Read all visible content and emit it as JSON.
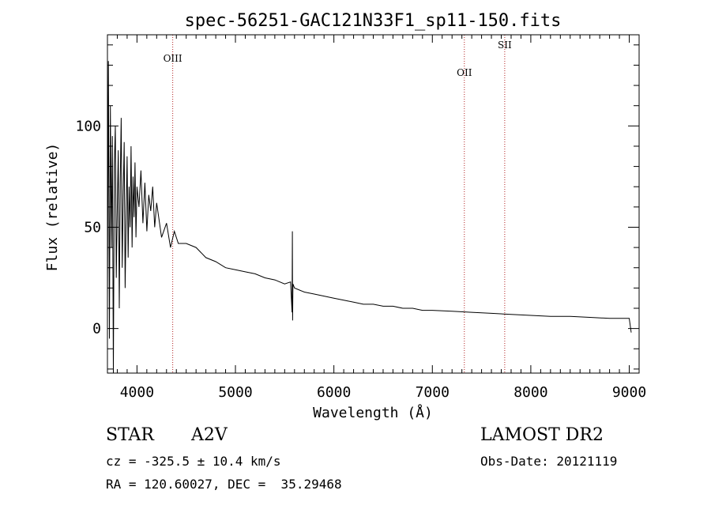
{
  "chart_data": {
    "type": "line",
    "title": "spec-56251-GAC121N33F1_sp11-150.fits",
    "xlabel": "Wavelength (Å)",
    "ylabel": "Flux (relative)",
    "xlim": [
      3700,
      9100
    ],
    "ylim": [
      -22,
      145
    ],
    "x_ticks": [
      4000,
      5000,
      6000,
      7000,
      8000,
      9000
    ],
    "y_ticks": [
      0,
      50,
      100
    ],
    "emission_lines": [
      {
        "label": "OIII",
        "wavelength": 4363
      },
      {
        "label": "OII",
        "wavelength": 7325
      },
      {
        "label": "SII",
        "wavelength": 7735
      }
    ],
    "series": [
      {
        "name": "flux",
        "x": [
          3700,
          3710,
          3720,
          3730,
          3740,
          3750,
          3760,
          3770,
          3780,
          3790,
          3800,
          3810,
          3820,
          3830,
          3840,
          3850,
          3860,
          3870,
          3880,
          3890,
          3900,
          3910,
          3920,
          3930,
          3940,
          3950,
          3960,
          3970,
          3980,
          3990,
          4000,
          4020,
          4040,
          4060,
          4080,
          4100,
          4120,
          4140,
          4160,
          4180,
          4200,
          4250,
          4300,
          4340,
          4380,
          4420,
          4500,
          4600,
          4700,
          4800,
          4900,
          5000,
          5100,
          5200,
          5300,
          5400,
          5500,
          5560,
          5575,
          5578,
          5581,
          5584,
          5600,
          5700,
          5800,
          5900,
          6000,
          6100,
          6200,
          6300,
          6400,
          6500,
          6600,
          6700,
          6800,
          6900,
          7000,
          7200,
          7400,
          7600,
          7800,
          8000,
          8200,
          8400,
          8600,
          8800,
          9000,
          9020
        ],
        "y": [
          15,
          132,
          -5,
          110,
          40,
          95,
          -25,
          80,
          100,
          25,
          60,
          88,
          10,
          72,
          104,
          30,
          65,
          92,
          20,
          56,
          85,
          35,
          70,
          50,
          90,
          40,
          75,
          55,
          82,
          45,
          70,
          60,
          78,
          52,
          72,
          48,
          66,
          58,
          70,
          50,
          62,
          45,
          52,
          40,
          48,
          42,
          42,
          40,
          35,
          33,
          30,
          29,
          28,
          27,
          25,
          24,
          22,
          23,
          8,
          48,
          4,
          22,
          20,
          18,
          17,
          16,
          15,
          14,
          13,
          12,
          12,
          11,
          11,
          10,
          10,
          9,
          9,
          8.5,
          8,
          7.5,
          7,
          6.5,
          6,
          6,
          5.5,
          5,
          5,
          -2
        ]
      }
    ]
  },
  "info": {
    "object_class": "STAR",
    "subclass": "A2V",
    "survey": "LAMOST DR2",
    "cz": "cz = -325.5 ± 10.4 km/s",
    "obs_date": "Obs-Date: 20121119",
    "coords": "RA = 120.60027, DEC =  35.29468"
  }
}
